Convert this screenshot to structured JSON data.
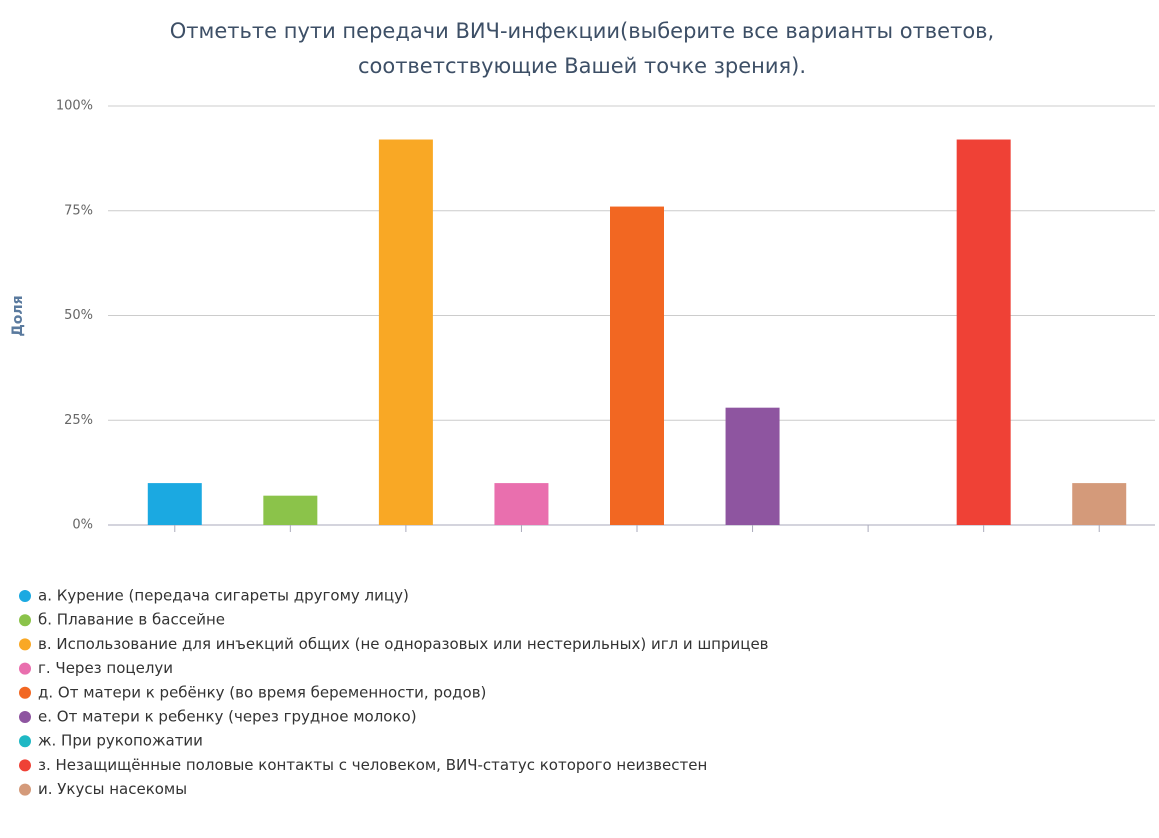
{
  "chart_data": {
    "type": "bar",
    "title": [
      "Отметьте пути передачи ВИЧ-инфекции(выберите все варианты ответов,",
      "соответствующие Вашей точке зрения)."
    ],
    "y_label": "Доля",
    "categories": [
      "а. Курение (передача сигареты другому лицу)",
      "б. Плавание в бассейне",
      "в. Использование для инъекций общих (не одноразовых или нестерильных) игл и шприцев",
      "г. Через поцелуи",
      "д. От матери к ребёнку (во время беременности, родов)",
      "е. От матери к ребенку (через грудное молоко)",
      "ж. При рукопожатии",
      "з. Незащищённые половые контакты с человеком, ВИЧ-статус которого неизвестен",
      "и. Укусы насекомы"
    ],
    "values": [
      10,
      7,
      92,
      10,
      76,
      28,
      0,
      92,
      10
    ],
    "colors": [
      "#1ba9e1",
      "#8bc34a",
      "#f9a825",
      "#e96fae",
      "#f26722",
      "#8e55a0",
      "#1fb8c4",
      "#ef4136",
      "#d49a7a"
    ],
    "ylim": [
      0,
      100
    ],
    "yticks": [
      {
        "value": 0,
        "label": "0%"
      },
      {
        "value": 25,
        "label": "25%"
      },
      {
        "value": 50,
        "label": "50%"
      },
      {
        "value": 75,
        "label": "75%"
      },
      {
        "value": 100,
        "label": "100%"
      }
    ],
    "grid": true,
    "legend": "bottom"
  }
}
